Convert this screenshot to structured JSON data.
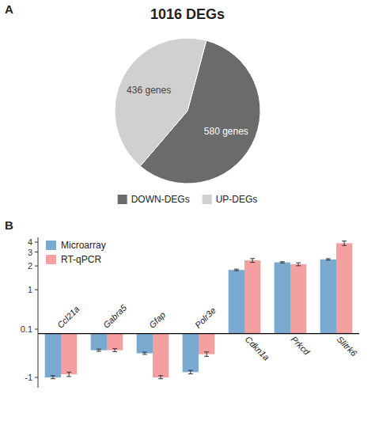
{
  "chart_data": [
    {
      "type": "pie",
      "title": "1016 DEGs",
      "categories": [
        "DOWN-DEGs",
        "UP-DEGs"
      ],
      "values": [
        580,
        436
      ],
      "value_labels": [
        "580 genes",
        "436 genes"
      ],
      "colors": [
        "#6b6b6b",
        "#d0d0d0"
      ],
      "data_labels": true,
      "legend": "lower center",
      "annotations": [
        "A"
      ]
    },
    {
      "type": "bar",
      "categories": [
        "Ccl21a",
        "Gabra5",
        "Gfap",
        "Polr3e",
        "Cdkn1a",
        "Prkcd",
        "Slitrk6"
      ],
      "series": [
        {
          "name": "Microarray",
          "color": "#7aaad0",
          "values": [
            -1.0,
            -0.38,
            -0.45,
            -0.88,
            1.78,
            2.22,
            2.42
          ],
          "error": [
            0.04,
            0.025,
            0.025,
            0.04,
            0.04,
            0.04,
            0.05
          ]
        },
        {
          "name": "RT-qPCR",
          "color": "#f5a0a0",
          "values": [
            -0.93,
            -0.38,
            -1.0,
            -0.47,
            2.35,
            2.1,
            3.88
          ],
          "error": [
            0.05,
            0.035,
            0.04,
            0.05,
            0.13,
            0.09,
            0.25
          ]
        }
      ],
      "ylim": [
        -1.35,
        4.6
      ],
      "yticks": [
        -1,
        0.1,
        1,
        2,
        3,
        4
      ],
      "log": "y",
      "grid": false,
      "legend": "upper left",
      "annotations": [
        "B"
      ]
    }
  ]
}
